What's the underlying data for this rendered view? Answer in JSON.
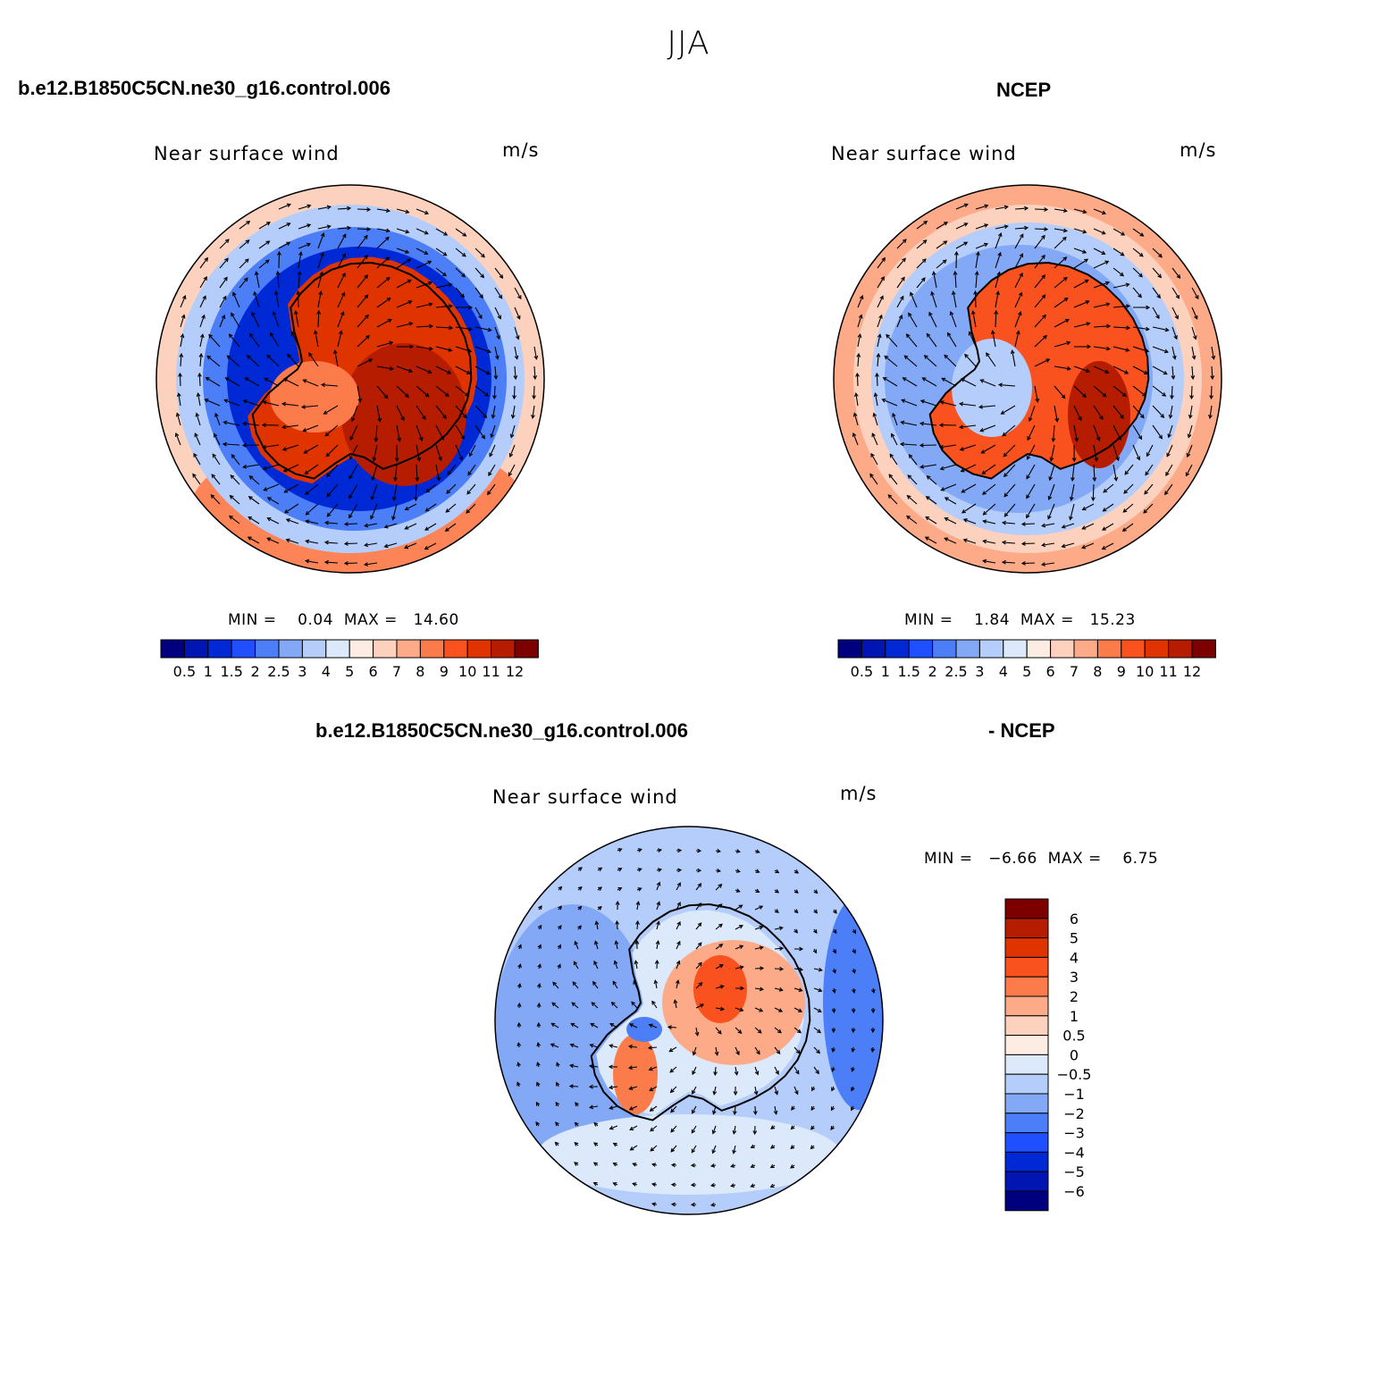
{
  "figure": {
    "season": "JJA",
    "model_case": "b.e12.B1850C5CN.ne30_g16.control.006",
    "obs": "NCEP",
    "diff_model": "b.e12.B1850C5CN.ne30_g16.control.006",
    "diff_obs": "- NCEP"
  },
  "panels": {
    "model": {
      "title": "Near surface wind",
      "units": "m/s",
      "stats": "MIN =    0.04  MAX =   14.60"
    },
    "obs": {
      "title": "Near surface wind",
      "units": "m/s",
      "stats": "MIN =    1.84  MAX =   15.23"
    },
    "diff": {
      "title": "Near surface wind",
      "units": "m/s",
      "stats": "MIN =   −6.66  MAX =    6.75"
    }
  },
  "chart_data": [
    {
      "type": "heatmap",
      "title": "Near surface wind",
      "units": "m/s",
      "projection": "south polar stereographic",
      "min": 0.04,
      "max": 14.6,
      "colorbar": {
        "orientation": "horizontal",
        "levels": [
          "0.5",
          "1",
          "1.5",
          "2",
          "2.5",
          "3",
          "4",
          "5",
          "6",
          "7",
          "8",
          "9",
          "10",
          "11",
          "12"
        ],
        "colors": [
          "#00007f",
          "#0015b2",
          "#0029d6",
          "#1f4fff",
          "#4b7ef7",
          "#82a8f6",
          "#b4cdfa",
          "#dbe9fb",
          "#fdece2",
          "#fcd2bf",
          "#fcaa88",
          "#fc7b4b",
          "#f9521e",
          "#df3400",
          "#b51c00",
          "#7c0000"
        ]
      },
      "vectors": "near-surface wind vectors"
    },
    {
      "type": "heatmap",
      "title": "Near surface wind",
      "units": "m/s",
      "projection": "south polar stereographic",
      "min": 1.84,
      "max": 15.23,
      "colorbar": {
        "orientation": "horizontal",
        "levels": [
          "0.5",
          "1",
          "1.5",
          "2",
          "2.5",
          "3",
          "4",
          "5",
          "6",
          "7",
          "8",
          "9",
          "10",
          "11",
          "12"
        ],
        "colors": [
          "#00007f",
          "#0015b2",
          "#0029d6",
          "#1f4fff",
          "#4b7ef7",
          "#82a8f6",
          "#b4cdfa",
          "#dbe9fb",
          "#fdece2",
          "#fcd2bf",
          "#fcaa88",
          "#fc7b4b",
          "#f9521e",
          "#df3400",
          "#b51c00",
          "#7c0000"
        ]
      },
      "vectors": "near-surface wind vectors"
    },
    {
      "type": "heatmap",
      "title": "Near surface wind",
      "units": "m/s",
      "projection": "south polar stereographic",
      "min": -6.66,
      "max": 6.75,
      "colorbar": {
        "orientation": "vertical",
        "levels": [
          "6",
          "5",
          "4",
          "3",
          "2",
          "1",
          "0.5",
          "0",
          "−0.5",
          "−1",
          "−2",
          "−3",
          "−4",
          "−5",
          "−6"
        ],
        "colors": [
          "#7c0000",
          "#b51c00",
          "#df3400",
          "#f9521e",
          "#fc7b4b",
          "#fcaa88",
          "#fcd2bf",
          "#fdece2",
          "#dbe9fb",
          "#b4cdfa",
          "#82a8f6",
          "#4b7ef7",
          "#1f4fff",
          "#0029d6",
          "#0015b2",
          "#00007f"
        ]
      },
      "vectors": "wind difference vectors"
    }
  ]
}
